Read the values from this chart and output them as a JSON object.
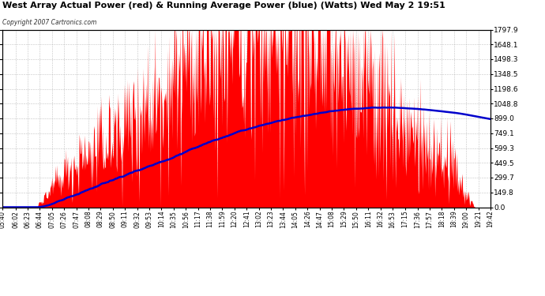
{
  "title": "West Array Actual Power (red) & Running Average Power (blue) (Watts) Wed May 2 19:51",
  "copyright": "Copyright 2007 Cartronics.com",
  "background_color": "#ffffff",
  "plot_bg_color": "#ffffff",
  "grid_color": "#aaaaaa",
  "y_ticks": [
    0.0,
    149.8,
    299.7,
    449.5,
    599.3,
    749.1,
    899.0,
    1048.8,
    1198.6,
    1348.5,
    1498.3,
    1648.1,
    1797.9
  ],
  "y_max": 1797.9,
  "red_color": "#ff0000",
  "blue_color": "#0000cc",
  "fill_color": "#ff0000",
  "tick_labels": [
    "05:40",
    "06:02",
    "06:23",
    "06:44",
    "07:05",
    "07:26",
    "07:47",
    "08:08",
    "08:29",
    "08:50",
    "09:11",
    "09:32",
    "09:53",
    "10:14",
    "10:35",
    "10:56",
    "11:17",
    "11:38",
    "11:59",
    "12:20",
    "12:41",
    "13:02",
    "13:23",
    "13:44",
    "14:05",
    "14:26",
    "14:47",
    "15:08",
    "15:29",
    "15:50",
    "16:11",
    "16:32",
    "16:53",
    "17:15",
    "17:36",
    "17:57",
    "18:18",
    "18:39",
    "19:00",
    "19:21",
    "19:42"
  ]
}
